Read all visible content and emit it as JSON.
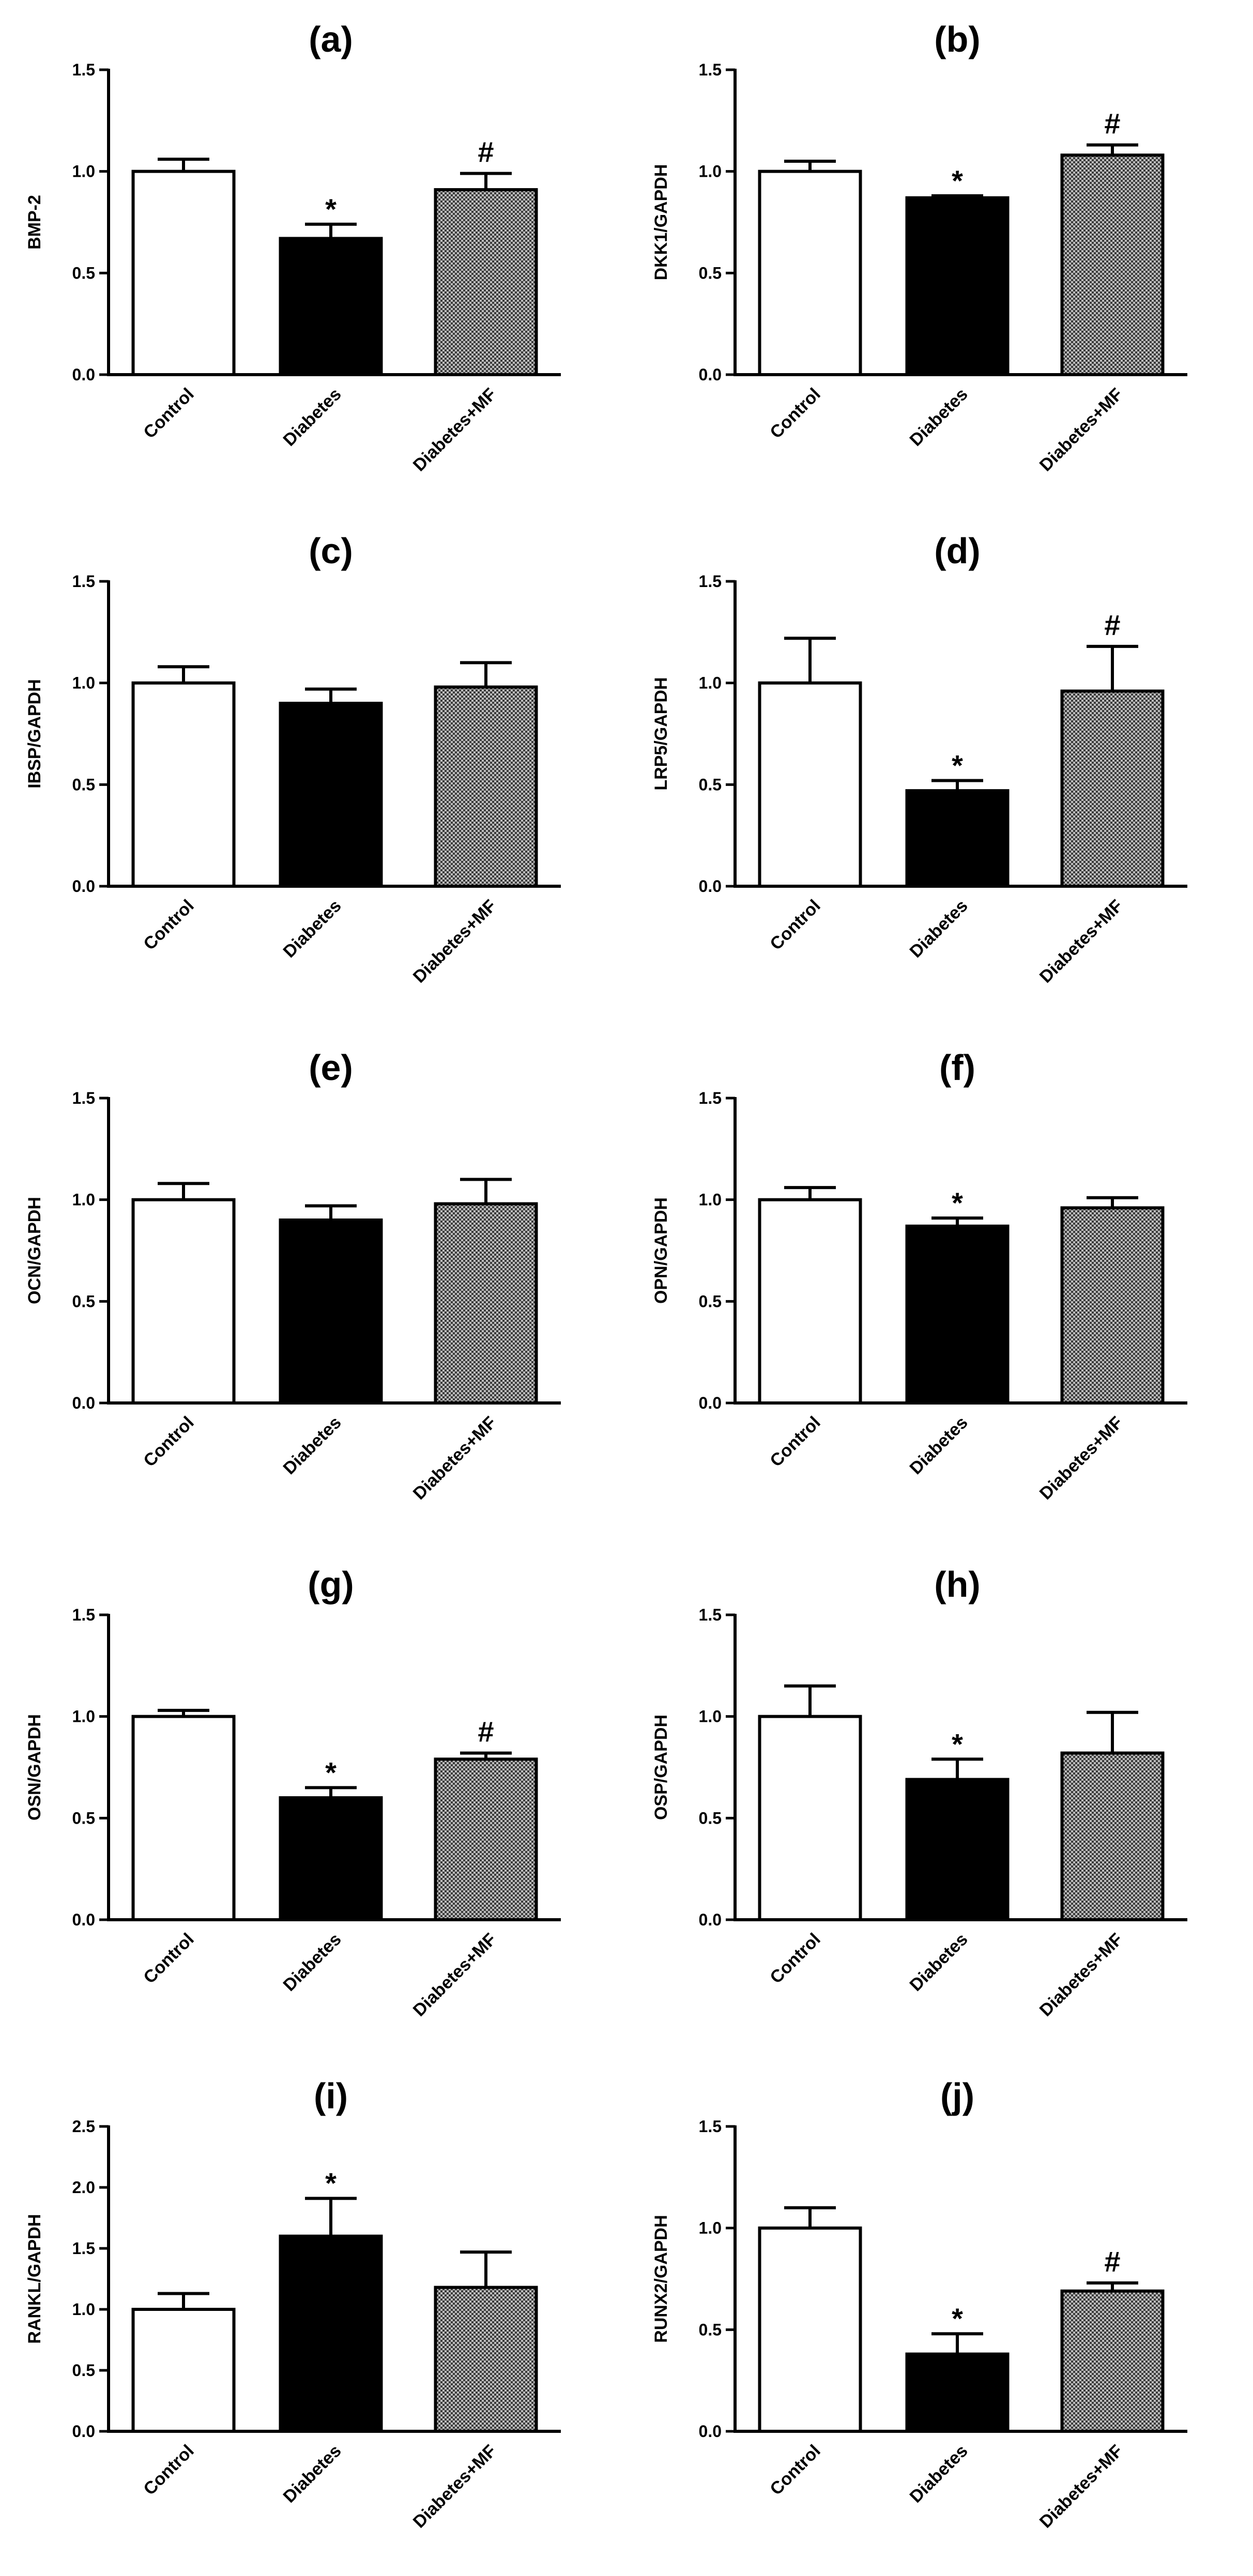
{
  "chart_data": [
    {
      "type": "bar",
      "panel": "(a)",
      "ylabel": "BMP-2",
      "ylim": [
        0,
        1.5
      ],
      "ticks": [
        "0.0",
        "0.5",
        "1.0",
        "1.5"
      ],
      "categories": [
        "Control",
        "Diabetes",
        "Diabetes+MF"
      ],
      "values": [
        1.0,
        0.67,
        0.91
      ],
      "errors": [
        0.06,
        0.07,
        0.08
      ],
      "annotations": [
        "",
        "*",
        "#"
      ]
    },
    {
      "type": "bar",
      "panel": "(b)",
      "ylabel": "DKK1/GAPDH",
      "ylim": [
        0,
        1.5
      ],
      "ticks": [
        "0.0",
        "0.5",
        "1.0",
        "1.5"
      ],
      "categories": [
        "Control",
        "Diabetes",
        "Diabetes+MF"
      ],
      "values": [
        1.0,
        0.87,
        1.08
      ],
      "errors": [
        0.05,
        0.01,
        0.05
      ],
      "annotations": [
        "",
        "*",
        "#"
      ]
    },
    {
      "type": "bar",
      "panel": "(c)",
      "ylabel": "IBSP/GAPDH",
      "ylim": [
        0,
        1.5
      ],
      "ticks": [
        "0.0",
        "0.5",
        "1.0",
        "1.5"
      ],
      "categories": [
        "Control",
        "Diabetes",
        "Diabetes+MF"
      ],
      "values": [
        1.0,
        0.9,
        0.98
      ],
      "errors": [
        0.08,
        0.07,
        0.12
      ],
      "annotations": [
        "",
        "",
        ""
      ]
    },
    {
      "type": "bar",
      "panel": "(d)",
      "ylabel": "LRP5/GAPDH",
      "ylim": [
        0,
        1.5
      ],
      "ticks": [
        "0.0",
        "0.5",
        "1.0",
        "1.5"
      ],
      "categories": [
        "Control",
        "Diabetes",
        "Diabetes+MF"
      ],
      "values": [
        1.0,
        0.47,
        0.96
      ],
      "errors": [
        0.22,
        0.05,
        0.22
      ],
      "annotations": [
        "",
        "*",
        "#"
      ]
    },
    {
      "type": "bar",
      "panel": "(e)",
      "ylabel": "OCN/GAPDH",
      "ylim": [
        0,
        1.5
      ],
      "ticks": [
        "0.0",
        "0.5",
        "1.0",
        "1.5"
      ],
      "categories": [
        "Control",
        "Diabetes",
        "Diabetes+MF"
      ],
      "values": [
        1.0,
        0.9,
        0.98
      ],
      "errors": [
        0.08,
        0.07,
        0.12
      ],
      "annotations": [
        "",
        "",
        ""
      ]
    },
    {
      "type": "bar",
      "panel": "(f)",
      "ylabel": "OPN/GAPDH",
      "ylim": [
        0,
        1.5
      ],
      "ticks": [
        "0.0",
        "0.5",
        "1.0",
        "1.5"
      ],
      "categories": [
        "Control",
        "Diabetes",
        "Diabetes+MF"
      ],
      "values": [
        1.0,
        0.87,
        0.96
      ],
      "errors": [
        0.06,
        0.04,
        0.05
      ],
      "annotations": [
        "",
        "*",
        ""
      ]
    },
    {
      "type": "bar",
      "panel": "(g)",
      "ylabel": "OSN/GAPDH",
      "ylim": [
        0,
        1.5
      ],
      "ticks": [
        "0.0",
        "0.5",
        "1.0",
        "1.5"
      ],
      "categories": [
        "Control",
        "Diabetes",
        "Diabetes+MF"
      ],
      "values": [
        1.0,
        0.6,
        0.79
      ],
      "errors": [
        0.03,
        0.05,
        0.03
      ],
      "annotations": [
        "",
        "*",
        "#"
      ]
    },
    {
      "type": "bar",
      "panel": "(h)",
      "ylabel": "OSP/GAPDH",
      "ylim": [
        0,
        1.5
      ],
      "ticks": [
        "0.0",
        "0.5",
        "1.0",
        "1.5"
      ],
      "categories": [
        "Control",
        "Diabetes",
        "Diabetes+MF"
      ],
      "values": [
        1.0,
        0.69,
        0.82
      ],
      "errors": [
        0.15,
        0.1,
        0.2
      ],
      "annotations": [
        "",
        "*",
        ""
      ]
    },
    {
      "type": "bar",
      "panel": "(i)",
      "ylabel": "RANKL/GAPDH",
      "ylim": [
        0,
        2.5
      ],
      "ticks": [
        "0.0",
        "0.5",
        "1.0",
        "1.5",
        "2.0",
        "2.5"
      ],
      "categories": [
        "Control",
        "Diabetes",
        "Diabetes+MF"
      ],
      "values": [
        1.0,
        1.6,
        1.18
      ],
      "errors": [
        0.13,
        0.31,
        0.29
      ],
      "annotations": [
        "",
        "*",
        ""
      ]
    },
    {
      "type": "bar",
      "panel": "(j)",
      "ylabel": "RUNX2/GAPDH",
      "ylim": [
        0,
        1.5
      ],
      "ticks": [
        "0.0",
        "0.5",
        "1.0",
        "1.5"
      ],
      "categories": [
        "Control",
        "Diabetes",
        "Diabetes+MF"
      ],
      "values": [
        1.0,
        0.38,
        0.69
      ],
      "errors": [
        0.1,
        0.1,
        0.04
      ],
      "annotations": [
        "",
        "*",
        "#"
      ]
    }
  ],
  "colors": {
    "control": "#ffffff",
    "diabetes": "#000000",
    "diabetes_mf": "#9a9a9a",
    "axis": "#000000"
  }
}
